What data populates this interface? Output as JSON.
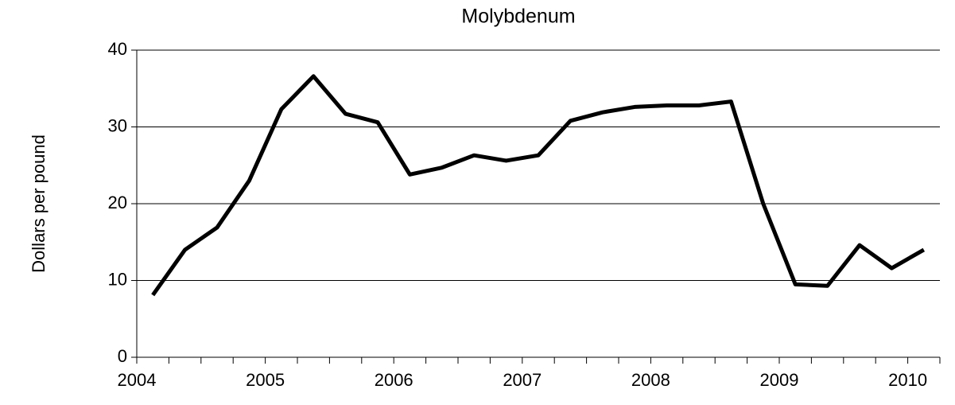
{
  "chart_data": {
    "type": "line",
    "title": "Molybdenum",
    "y_label": "Dollars per pound",
    "x": [
      2004.125,
      2004.375,
      2004.625,
      2004.875,
      2005.125,
      2005.375,
      2005.625,
      2005.875,
      2006.125,
      2006.375,
      2006.625,
      2006.875,
      2007.125,
      2007.375,
      2007.625,
      2007.875,
      2008.125,
      2008.375,
      2008.625,
      2008.875,
      2009.125,
      2009.375,
      2009.625,
      2009.875,
      2010.125
    ],
    "series": [
      {
        "name": "Molybdenum",
        "color": "#000000",
        "values": [
          8.1,
          14.0,
          16.9,
          23.0,
          32.3,
          36.6,
          31.7,
          30.6,
          23.8,
          24.7,
          26.3,
          25.6,
          26.3,
          30.8,
          31.9,
          32.6,
          32.8,
          32.8,
          33.3,
          20.0,
          9.5,
          9.3,
          14.6,
          11.6,
          14.0
        ]
      }
    ],
    "xlim": [
      2004,
      2010.25
    ],
    "xticks": [
      2004,
      2005,
      2006,
      2007,
      2008,
      2009,
      2010
    ],
    "xminorticks": [
      2004.25,
      2004.5,
      2004.75,
      2005.25,
      2005.5,
      2005.75,
      2006.25,
      2006.5,
      2006.75,
      2007.25,
      2007.5,
      2007.75,
      2008.25,
      2008.5,
      2008.75,
      2009.25,
      2009.5,
      2009.75,
      2010.25
    ],
    "ylim": [
      0,
      40
    ],
    "yticks": [
      0,
      10,
      20,
      30,
      40
    ],
    "grid": true
  }
}
